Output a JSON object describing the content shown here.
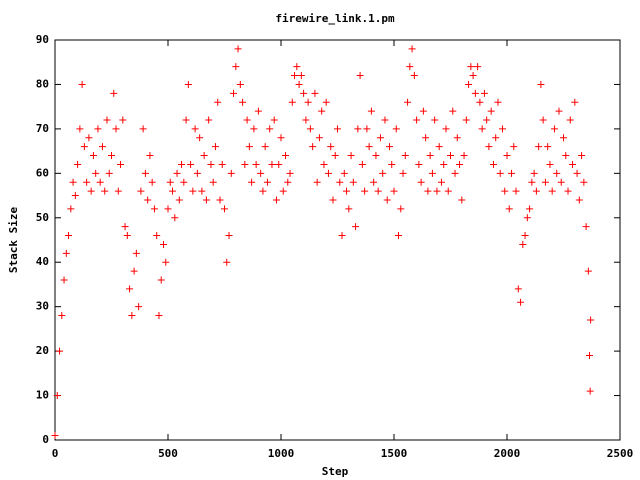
{
  "chart_data": {
    "type": "scatter",
    "title": "firewire_link.1.pm",
    "xlabel": "Step",
    "ylabel": "Stack Size",
    "series": [
      {
        "name": "firewire_link.1.pm",
        "color": "#ff0000",
        "x": [
          0,
          10,
          20,
          30,
          40,
          50,
          60,
          70,
          80,
          90,
          100,
          110,
          120,
          130,
          140,
          150,
          160,
          170,
          180,
          190,
          200,
          210,
          220,
          230,
          240,
          250,
          260,
          270,
          280,
          290,
          300,
          310,
          320,
          330,
          340,
          350,
          360,
          370,
          380,
          390,
          400,
          410,
          420,
          430,
          440,
          450,
          460,
          470,
          480,
          490,
          500,
          510,
          520,
          530,
          540,
          550,
          560,
          570,
          580,
          590,
          600,
          610,
          620,
          630,
          640,
          650,
          660,
          670,
          680,
          690,
          700,
          710,
          720,
          730,
          740,
          750,
          760,
          770,
          780,
          790,
          800,
          810,
          820,
          830,
          840,
          850,
          860,
          870,
          880,
          890,
          900,
          910,
          920,
          930,
          940,
          950,
          960,
          970,
          980,
          990,
          1000,
          1010,
          1020,
          1030,
          1040,
          1050,
          1060,
          1070,
          1080,
          1090,
          1100,
          1110,
          1120,
          1130,
          1140,
          1150,
          1160,
          1170,
          1180,
          1190,
          1200,
          1210,
          1220,
          1230,
          1240,
          1250,
          1260,
          1270,
          1280,
          1290,
          1300,
          1310,
          1320,
          1330,
          1340,
          1350,
          1360,
          1370,
          1380,
          1390,
          1400,
          1410,
          1420,
          1430,
          1440,
          1450,
          1460,
          1470,
          1480,
          1490,
          1500,
          1510,
          1520,
          1530,
          1540,
          1550,
          1560,
          1570,
          1580,
          1590,
          1600,
          1610,
          1620,
          1630,
          1640,
          1650,
          1660,
          1670,
          1680,
          1690,
          1700,
          1710,
          1720,
          1730,
          1740,
          1750,
          1760,
          1770,
          1780,
          1790,
          1800,
          1810,
          1820,
          1830,
          1840,
          1850,
          1860,
          1870,
          1880,
          1890,
          1900,
          1910,
          1920,
          1930,
          1940,
          1950,
          1960,
          1970,
          1980,
          1990,
          2000,
          2010,
          2020,
          2030,
          2040,
          2050,
          2060,
          2070,
          2080,
          2090,
          2100,
          2110,
          2120,
          2130,
          2140,
          2150,
          2160,
          2170,
          2180,
          2190,
          2200,
          2210,
          2220,
          2230,
          2240,
          2250,
          2260,
          2270,
          2280,
          2290,
          2300,
          2310,
          2320,
          2330,
          2340,
          2350,
          2360,
          2370,
          2365,
          2368
        ],
        "values": [
          1,
          10,
          20,
          28,
          36,
          42,
          46,
          52,
          58,
          55,
          62,
          70,
          80,
          66,
          58,
          68,
          56,
          64,
          60,
          70,
          58,
          66,
          56,
          72,
          60,
          64,
          78,
          70,
          56,
          62,
          72,
          48,
          46,
          34,
          28,
          38,
          42,
          30,
          56,
          70,
          60,
          54,
          64,
          58,
          52,
          46,
          28,
          36,
          44,
          40,
          52,
          58,
          56,
          50,
          60,
          54,
          62,
          58,
          72,
          80,
          62,
          56,
          70,
          60,
          68,
          56,
          64,
          54,
          72,
          62,
          58,
          66,
          76,
          54,
          62,
          52,
          40,
          46,
          60,
          78,
          84,
          88,
          80,
          76,
          62,
          72,
          66,
          58,
          70,
          62,
          74,
          60,
          56,
          66,
          58,
          70,
          62,
          72,
          54,
          62,
          68,
          56,
          64,
          58,
          60,
          76,
          82,
          84,
          80,
          82,
          78,
          72,
          76,
          70,
          66,
          78,
          58,
          68,
          74,
          62,
          76,
          60,
          66,
          54,
          64,
          70,
          58,
          46,
          60,
          56,
          52,
          64,
          58,
          48,
          70,
          82,
          62,
          56,
          70,
          66,
          74,
          58,
          64,
          56,
          68,
          60,
          72,
          54,
          66,
          62,
          56,
          70,
          46,
          52,
          60,
          64,
          76,
          84,
          88,
          82,
          72,
          62,
          58,
          74,
          68,
          56,
          64,
          60,
          72,
          56,
          66,
          58,
          62,
          70,
          56,
          64,
          74,
          60,
          68,
          62,
          54,
          64,
          72,
          80,
          84,
          82,
          78,
          84,
          76,
          70,
          78,
          72,
          66,
          74,
          62,
          68,
          76,
          60,
          70,
          56,
          64,
          52,
          60,
          66,
          56,
          34,
          31,
          44,
          46,
          50,
          52,
          58,
          60,
          56,
          66,
          80,
          72,
          58,
          66,
          62,
          56,
          70,
          60,
          74,
          58,
          68,
          64,
          56,
          72,
          62,
          76,
          60,
          54,
          64,
          58,
          48,
          38,
          27,
          19,
          11
        ]
      }
    ],
    "xlim": [
      0,
      2500
    ],
    "xticks": [
      0,
      500,
      1000,
      1500,
      2000,
      2500
    ],
    "ylim": [
      0,
      90
    ],
    "yticks": [
      0,
      10,
      20,
      30,
      40,
      50,
      60,
      70,
      80,
      90
    ]
  }
}
